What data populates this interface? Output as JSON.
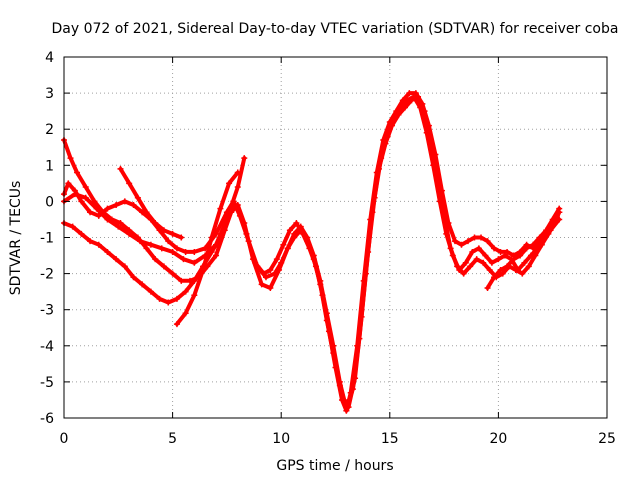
{
  "chart_data": {
    "type": "line",
    "title": "Day 072 of 2021, Sidereal Day-to-day VTEC variation (SDTVAR) for receiver coba",
    "xlabel": "GPS time / hours",
    "ylabel": "SDTVAR / TECUs",
    "xlim": [
      0,
      25
    ],
    "ylim": [
      -6,
      4
    ],
    "xticks": [
      "0",
      "5",
      "10",
      "15",
      "20",
      "25"
    ],
    "yticks": [
      "-6",
      "-5",
      "-4",
      "-3",
      "-2",
      "-1",
      "0",
      "1",
      "2",
      "3",
      "4"
    ],
    "grid": true,
    "color": "#ff0000",
    "series": [
      {
        "x": [
          0.0,
          0.2,
          0.5,
          0.8,
          1.2,
          1.6,
          2.0,
          2.4,
          2.8,
          3.2,
          3.6,
          4.0,
          4.4,
          4.8,
          5.2,
          5.6,
          6.0,
          6.5,
          7.0,
          7.5,
          7.8,
          8.0,
          8.4,
          8.8,
          9.2,
          9.5,
          9.8,
          10.1,
          10.4,
          10.7,
          11.0,
          11.3,
          11.6,
          11.9,
          12.2,
          12.5,
          12.8,
          13.0,
          13.2,
          13.5,
          13.8,
          14.1,
          14.4,
          14.7,
          15.0,
          15.3,
          15.6,
          15.9,
          16.2,
          16.5,
          16.8,
          17.1,
          17.4,
          17.7,
          18.0,
          18.3,
          18.6,
          18.9,
          19.2,
          19.5,
          19.8,
          20.1,
          20.4,
          20.7,
          21.0,
          21.3,
          21.6,
          21.9,
          22.2,
          22.5,
          22.8
        ],
        "y": [
          0.2,
          0.5,
          0.3,
          0.0,
          -0.3,
          -0.4,
          -0.2,
          -0.1,
          0.0,
          -0.1,
          -0.3,
          -0.5,
          -0.8,
          -1.1,
          -1.3,
          -1.4,
          -1.4,
          -1.3,
          -0.9,
          -0.3,
          0.0,
          -0.2,
          -0.9,
          -1.7,
          -2.0,
          -1.9,
          -1.6,
          -1.2,
          -0.8,
          -0.6,
          -0.9,
          -1.3,
          -1.8,
          -2.6,
          -3.6,
          -4.6,
          -5.5,
          -5.8,
          -5.3,
          -4.0,
          -2.2,
          -0.5,
          0.8,
          1.7,
          2.2,
          2.5,
          2.8,
          3.0,
          3.0,
          2.7,
          2.1,
          1.3,
          0.3,
          -0.6,
          -1.1,
          -1.2,
          -1.1,
          -1.0,
          -1.0,
          -1.1,
          -1.3,
          -1.4,
          -1.4,
          -1.5,
          -1.4,
          -1.2,
          -1.3,
          -1.1,
          -0.9,
          -0.6,
          -0.3
        ]
      },
      {
        "x": [
          0.0,
          0.3,
          0.6,
          1.0,
          1.4,
          1.8,
          2.2,
          2.6,
          3.0,
          3.4,
          3.8,
          4.2,
          4.6,
          5.0,
          5.4,
          5.8,
          6.2,
          6.6,
          7.0,
          7.4,
          7.7,
          8.0,
          8.3,
          8.7,
          9.1,
          9.5,
          9.9,
          10.3,
          10.6,
          10.9,
          11.2,
          11.5,
          11.8,
          12.1,
          12.4,
          12.7,
          12.9,
          13.1,
          13.4,
          13.7,
          14.0,
          14.3,
          14.6,
          14.9,
          15.2,
          15.5,
          15.8,
          16.1,
          16.4,
          16.7,
          17.0,
          17.3,
          17.6,
          17.9,
          18.2,
          18.5,
          18.8,
          19.1,
          19.4,
          19.7,
          20.0,
          20.3,
          20.6,
          20.9,
          21.2,
          21.5,
          21.8,
          22.1,
          22.4,
          22.8
        ],
        "y": [
          1.7,
          1.2,
          0.8,
          0.4,
          0.0,
          -0.3,
          -0.5,
          -0.6,
          -0.8,
          -1.0,
          -1.3,
          -1.6,
          -1.8,
          -2.0,
          -2.2,
          -2.2,
          -2.1,
          -1.8,
          -1.5,
          -0.8,
          -0.3,
          -0.1,
          -0.6,
          -1.6,
          -2.3,
          -2.4,
          -1.9,
          -1.3,
          -0.9,
          -0.7,
          -1.0,
          -1.5,
          -2.2,
          -3.1,
          -4.0,
          -5.0,
          -5.5,
          -5.7,
          -4.9,
          -3.2,
          -1.4,
          0.1,
          1.2,
          1.8,
          2.3,
          2.6,
          2.8,
          2.9,
          2.6,
          1.9,
          1.0,
          0.0,
          -0.9,
          -1.5,
          -1.9,
          -1.7,
          -1.4,
          -1.3,
          -1.5,
          -1.7,
          -1.6,
          -1.5,
          -1.6,
          -1.9,
          -1.7,
          -1.5,
          -1.3,
          -1.0,
          -0.8,
          -0.5
        ]
      },
      {
        "x": [
          0.0,
          0.4,
          0.8,
          1.2,
          1.6,
          2.0,
          2.4,
          2.8,
          3.2,
          3.6,
          4.0,
          4.4,
          4.8,
          5.2,
          5.6,
          6.0,
          6.4,
          6.8,
          7.2,
          7.5,
          7.8,
          8.1,
          8.5,
          8.9,
          9.3,
          9.7,
          10.0,
          10.3,
          10.6,
          10.9,
          11.2,
          11.5,
          11.8,
          12.1,
          12.4,
          12.7,
          13.0,
          13.3,
          13.6,
          13.9,
          14.2,
          14.5,
          14.8,
          15.1,
          15.4,
          15.7,
          16.0,
          16.3,
          16.6,
          16.9,
          17.2,
          17.5,
          17.8,
          18.1,
          18.4,
          18.7,
          19.0,
          19.3,
          19.6,
          19.9,
          20.2,
          20.5,
          20.8,
          21.1,
          21.4,
          21.7,
          22.0,
          22.3,
          22.6,
          22.8
        ],
        "y": [
          -0.6,
          -0.7,
          -0.9,
          -1.1,
          -1.2,
          -1.4,
          -1.6,
          -1.8,
          -2.1,
          -2.3,
          -2.5,
          -2.7,
          -2.8,
          -2.7,
          -2.5,
          -2.2,
          -1.8,
          -1.4,
          -1.0,
          -0.5,
          0.0,
          -0.4,
          -1.1,
          -1.8,
          -2.1,
          -2.0,
          -1.7,
          -1.3,
          -1.0,
          -0.8,
          -1.1,
          -1.6,
          -2.3,
          -3.3,
          -4.2,
          -5.1,
          -5.7,
          -5.2,
          -3.8,
          -2.0,
          -0.3,
          0.9,
          1.6,
          2.1,
          2.4,
          2.6,
          2.8,
          2.9,
          2.5,
          1.6,
          0.6,
          -0.4,
          -1.3,
          -1.8,
          -2.0,
          -1.8,
          -1.6,
          -1.7,
          -1.9,
          -2.1,
          -2.0,
          -1.8,
          -1.9,
          -2.0,
          -1.8,
          -1.5,
          -1.2,
          -0.9,
          -0.6,
          -0.3
        ]
      },
      {
        "x": [
          0.0,
          0.5,
          1.0,
          1.5,
          2.0,
          2.5,
          3.0,
          3.5,
          4.0,
          4.5,
          5.0,
          5.5,
          6.0,
          6.5,
          7.0,
          7.5,
          8.0,
          8.3
        ],
        "y": [
          0.0,
          0.2,
          0.1,
          -0.2,
          -0.5,
          -0.7,
          -0.9,
          -1.1,
          -1.2,
          -1.3,
          -1.4,
          -1.6,
          -1.7,
          -1.5,
          -1.2,
          -0.5,
          0.4,
          1.2
        ]
      },
      {
        "x": [
          2.6,
          3.0,
          3.4,
          3.8,
          4.2,
          4.6,
          5.0,
          5.4
        ],
        "y": [
          0.9,
          0.5,
          0.1,
          -0.3,
          -0.6,
          -0.8,
          -0.9,
          -1.0
        ]
      },
      {
        "x": [
          5.2,
          5.6,
          6.0,
          6.4,
          6.8,
          7.2,
          7.6,
          8.0
        ],
        "y": [
          -3.4,
          -3.1,
          -2.6,
          -1.9,
          -1.0,
          -0.2,
          0.5,
          0.8
        ]
      },
      {
        "x": [
          19.5,
          19.8,
          20.1,
          20.4,
          20.7,
          21.0,
          21.3,
          21.6,
          21.9,
          22.2,
          22.5,
          22.8
        ],
        "y": [
          -2.4,
          -2.1,
          -1.9,
          -1.8,
          -1.6,
          -1.5,
          -1.3,
          -1.2,
          -1.0,
          -0.8,
          -0.5,
          -0.2
        ]
      }
    ]
  }
}
